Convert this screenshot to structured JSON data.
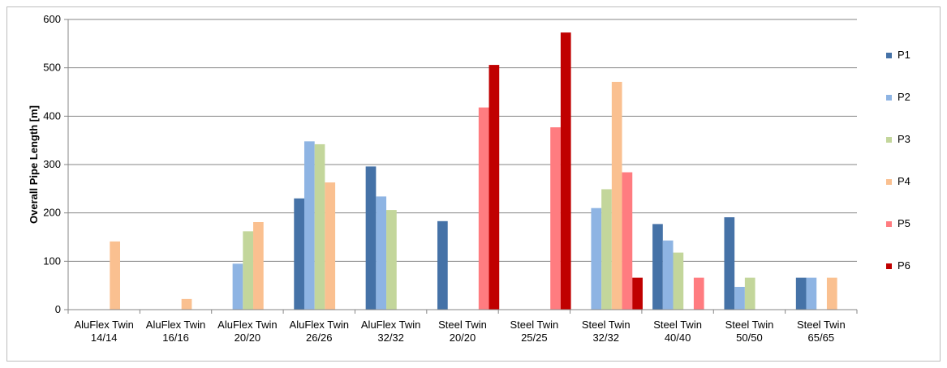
{
  "chart_data": {
    "type": "bar",
    "title": "",
    "xlabel": "",
    "ylabel": "Overall Pipe Length [m]",
    "ylim": [
      0,
      600
    ],
    "yticks": [
      0,
      100,
      200,
      300,
      400,
      500,
      600
    ],
    "grid": true,
    "legend_position": "right",
    "categories": [
      [
        "AluFlex Twin",
        "14/14"
      ],
      [
        "AluFlex Twin",
        "16/16"
      ],
      [
        "AluFlex Twin",
        "20/20"
      ],
      [
        "AluFlex Twin",
        "26/26"
      ],
      [
        "AluFlex Twin",
        "32/32"
      ],
      [
        "Steel Twin",
        "20/20"
      ],
      [
        "Steel Twin",
        "25/25"
      ],
      [
        "Steel Twin",
        "32/32"
      ],
      [
        "Steel Twin",
        "40/40"
      ],
      [
        "Steel Twin",
        "50/50"
      ],
      [
        "Steel Twin",
        "65/65"
      ]
    ],
    "series": [
      {
        "name": "P1",
        "color": "#4572a7",
        "values": [
          0,
          0,
          0,
          230,
          296,
          183,
          0,
          0,
          177,
          191,
          66
        ]
      },
      {
        "name": "P2",
        "color": "#8eb4e3",
        "values": [
          0,
          0,
          95,
          348,
          234,
          0,
          0,
          210,
          143,
          47,
          66
        ]
      },
      {
        "name": "P3",
        "color": "#c3d69b",
        "values": [
          0,
          0,
          162,
          342,
          206,
          0,
          0,
          249,
          118,
          66,
          0
        ]
      },
      {
        "name": "P4",
        "color": "#fac090",
        "values": [
          141,
          22,
          181,
          263,
          0,
          0,
          0,
          471,
          0,
          0,
          66
        ]
      },
      {
        "name": "P5",
        "color": "#ff7c80",
        "values": [
          0,
          0,
          0,
          0,
          0,
          418,
          377,
          284,
          66,
          0,
          0
        ]
      },
      {
        "name": "P6",
        "color": "#c00000",
        "values": [
          0,
          0,
          0,
          0,
          0,
          506,
          573,
          66,
          0,
          0,
          0
        ]
      }
    ]
  }
}
